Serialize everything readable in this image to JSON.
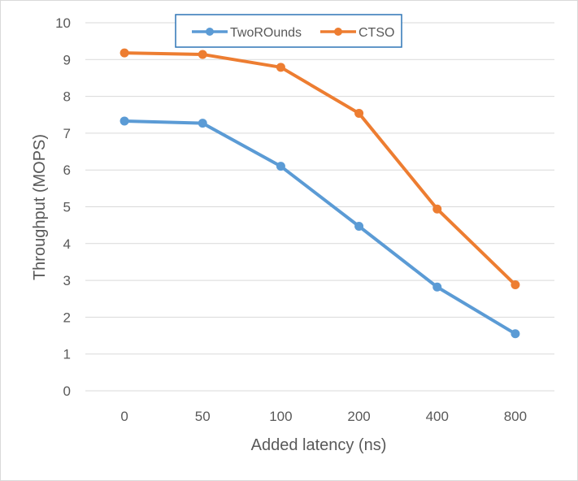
{
  "chart_data": {
    "type": "line",
    "categories": [
      "0",
      "50",
      "100",
      "200",
      "400",
      "800"
    ],
    "series": [
      {
        "name": "TwoROunds",
        "color": "#5b9bd5",
        "values": [
          7.33,
          7.27,
          6.1,
          4.47,
          2.82,
          1.55
        ]
      },
      {
        "name": "CTSO",
        "color": "#ed7d31",
        "values": [
          9.18,
          9.14,
          8.79,
          7.54,
          4.94,
          2.88
        ]
      }
    ],
    "xlabel": "Added latency (ns)",
    "ylabel": "Throughput (MOPS)",
    "ylim": [
      0,
      10
    ],
    "yticks": [
      "0",
      "1",
      "2",
      "3",
      "4",
      "5",
      "6",
      "7",
      "8",
      "9",
      "10"
    ],
    "grid": true,
    "legend_position": "top-center"
  }
}
